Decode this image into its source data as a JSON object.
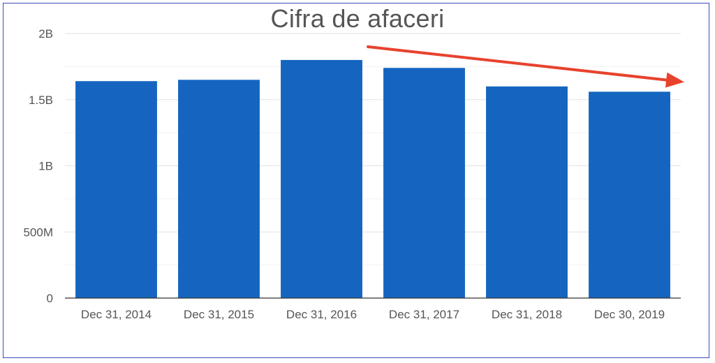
{
  "chart_data": {
    "type": "bar",
    "title": "Cifra de afaceri",
    "categories": [
      "Dec 31, 2014",
      "Dec 31, 2015",
      "Dec 31, 2016",
      "Dec 31, 2017",
      "Dec 31, 2018",
      "Dec 30, 2019"
    ],
    "values": [
      1640000000,
      1650000000,
      1800000000,
      1740000000,
      1600000000,
      1560000000
    ],
    "ylim": [
      0,
      2000000000
    ],
    "yticks": [
      0,
      500000000,
      1000000000,
      1500000000,
      2000000000
    ],
    "ytick_labels": [
      "0",
      "500M",
      "1B",
      "1.5B",
      "2B"
    ],
    "grid": true,
    "bar_color": "#1565c0",
    "annotation": {
      "type": "arrow",
      "meaning": "downward trend",
      "color": "#e8422c"
    }
  }
}
